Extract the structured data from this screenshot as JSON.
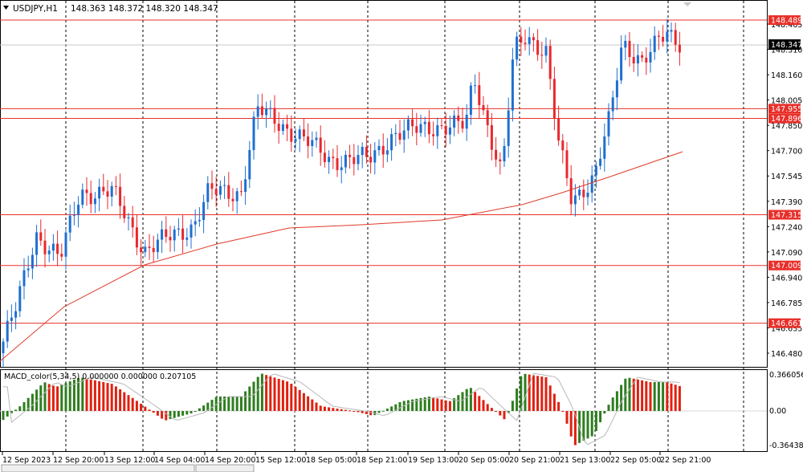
{
  "header": {
    "symbol_label": "USDJPY,H1",
    "ohlc": "148.363 148.372 148.320 148.347",
    "menu_icon": "triangle-down-icon"
  },
  "indicator": {
    "label": "MACD_color(5,34,5) 0.000000 0.000000 0.207105",
    "scale_top": "0.366056",
    "scale_zero": "0.00",
    "scale_bottom": "-0.36438"
  },
  "colors": {
    "bull": "#2e7d1f",
    "bear": "#e02010",
    "bull_candle": "#1f6fd0",
    "bear_candle": "#e8282e",
    "hline": "#e8302a",
    "ma": "#e03a2a",
    "grid_vertical": "#000000",
    "price_tag_bg": "#000000",
    "hline_tag_bg": "#e8302a",
    "signal": "#b8b8b8"
  },
  "price_axis": {
    "ticks": [
      "148.465",
      "148.310",
      "148.160",
      "148.005",
      "147.850",
      "147.700",
      "147.545",
      "147.390",
      "147.240",
      "147.090",
      "146.940",
      "146.785",
      "146.635",
      "146.480"
    ],
    "current_price": "148.347"
  },
  "horizontal_levels": [
    {
      "label": "148.489"
    },
    {
      "label": "147.955"
    },
    {
      "label": "147.896"
    },
    {
      "label": "147.315"
    },
    {
      "label": "147.009"
    },
    {
      "label": "146.661"
    }
  ],
  "time_axis": [
    "12 Sep 2023",
    "12 Sep 20:00",
    "13 Sep 12:00",
    "14 Sep 04:00",
    "14 Sep 20:00",
    "15 Sep 12:00",
    "18 Sep 05:00",
    "18 Sep 21:00",
    "19 Sep 13:00",
    "20 Sep 05:00",
    "20 Sep 21:00",
    "21 Sep 13:00",
    "22 Sep 05:00",
    "22 Sep 21:00"
  ],
  "tabs": [
    {
      "label": ""
    },
    {
      "label": ""
    }
  ]
}
